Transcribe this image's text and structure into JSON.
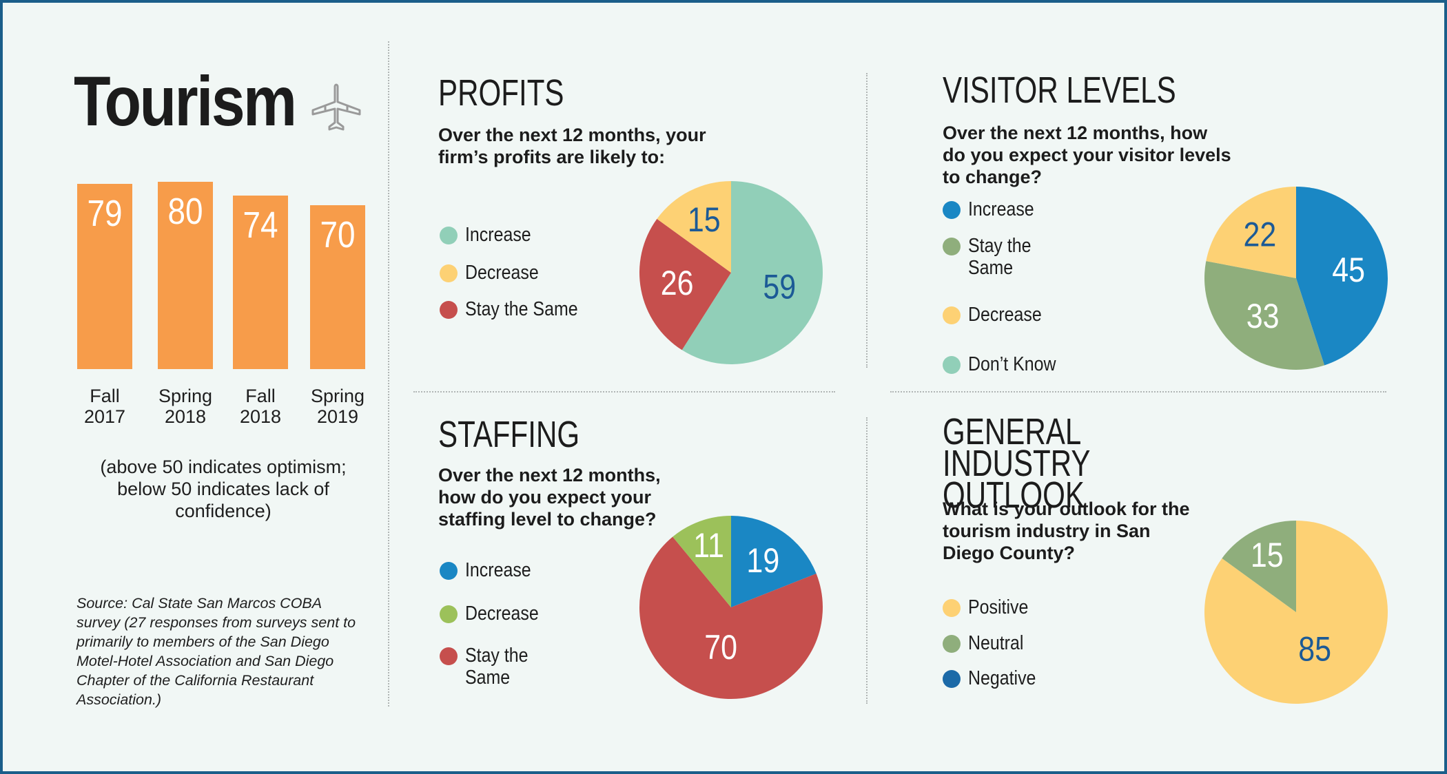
{
  "chart_data": [
    {
      "type": "bar",
      "title": "Tourism",
      "categories": [
        "Fall\n2017",
        "Spring\n2018",
        "Fall\n2018",
        "Spring\n2019"
      ],
      "values": [
        79,
        80,
        74,
        70
      ],
      "ylim": [
        0,
        100
      ],
      "color": "#f79c4a",
      "note": "(above 50 indicates optimism; below 50 indicates lack of confidence)",
      "source": "Source: Cal State San Marcos COBA survey (27 responses from surveys sent to primarily to members of the San Diego Motel-Hotel Association and San Diego Chapter of the California Restaurant Association.)"
    },
    {
      "type": "pie",
      "title": "PROFITS",
      "question": "Over the next 12 months, your firm’s profits are likely to:",
      "legend": [
        {
          "label": "Increase",
          "color": "#91cfb8"
        },
        {
          "label": "Decrease",
          "color": "#fdd174"
        },
        {
          "label": "Stay the Same",
          "color": "#c64f4d"
        }
      ],
      "slices": [
        {
          "label": "Increase",
          "value": 59,
          "color": "#91cfb8",
          "text_color": "#1c5a96"
        },
        {
          "label": "Stay the Same",
          "value": 26,
          "color": "#c64f4d",
          "text_color": "#ffffff"
        },
        {
          "label": "Decrease",
          "value": 15,
          "color": "#fdd174",
          "text_color": "#1c5a96"
        }
      ]
    },
    {
      "type": "pie",
      "title": "VISITOR LEVELS",
      "question": "Over the next 12 months, how do you expect your visitor levels to change?",
      "legend": [
        {
          "label": "Increase",
          "color": "#1a87c4"
        },
        {
          "label": "Stay the Same",
          "color": "#8fae7c"
        },
        {
          "label": "Decrease",
          "color": "#fdd174"
        },
        {
          "label": "Don’t Know",
          "color": "#91cfb8"
        }
      ],
      "slices": [
        {
          "label": "Increase",
          "value": 45,
          "color": "#1a87c4",
          "text_color": "#ffffff"
        },
        {
          "label": "Stay the Same",
          "value": 33,
          "color": "#8fae7c",
          "text_color": "#ffffff"
        },
        {
          "label": "Decrease",
          "value": 22,
          "color": "#fdd174",
          "text_color": "#1c5a96"
        }
      ]
    },
    {
      "type": "pie",
      "title": "STAFFING",
      "question": "Over the next 12 months, how do you expect your staffing level to change?",
      "legend": [
        {
          "label": "Increase",
          "color": "#1a87c4"
        },
        {
          "label": "Decrease",
          "color": "#9cc15a"
        },
        {
          "label": "Stay the Same",
          "color": "#c64f4d"
        }
      ],
      "slices": [
        {
          "label": "Increase",
          "value": 19,
          "color": "#1a87c4",
          "text_color": "#ffffff"
        },
        {
          "label": "Stay the Same",
          "value": 70,
          "color": "#c64f4d",
          "text_color": "#ffffff"
        },
        {
          "label": "Decrease",
          "value": 11,
          "color": "#9cc15a",
          "text_color": "#ffffff"
        }
      ]
    },
    {
      "type": "pie",
      "title": "GENERAL INDUSTRY OUTLOOK",
      "question": "What is your outlook for the tourism industry in San Diego County?",
      "legend": [
        {
          "label": "Positive",
          "color": "#fdd174"
        },
        {
          "label": "Neutral",
          "color": "#8fae7c"
        },
        {
          "label": "Negative",
          "color": "#1c6aa8"
        }
      ],
      "slices": [
        {
          "label": "Positive",
          "value": 85,
          "color": "#fdd174",
          "text_color": "#1c5a96"
        },
        {
          "label": "Neutral",
          "value": 15,
          "color": "#8fae7c",
          "text_color": "#ffffff"
        }
      ]
    }
  ],
  "icons": {
    "airplane": "airplane-icon"
  }
}
